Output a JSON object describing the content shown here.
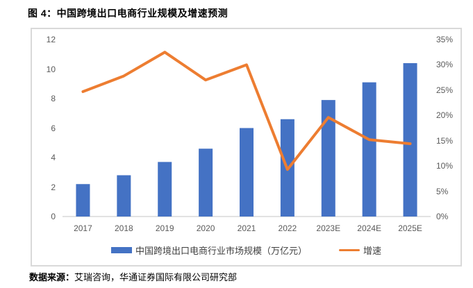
{
  "title": "图 4：中国跨境出口电商行业规模及增速预测",
  "source": {
    "label": "数据来源：",
    "text": "艾瑞咨询，华通证券国际有限公司研究部"
  },
  "legend": [
    {
      "label": "中国跨境出口电商行业市场规模（万亿元）",
      "swatch": "bar-swatch"
    },
    {
      "label": "增速",
      "swatch": "line-swatch"
    }
  ],
  "colors": {
    "bar": "#4472C4",
    "line": "#ED7D31",
    "axis_text": "#595959",
    "frame_border": "#D9D9D9",
    "baseline": "#D9D9D9"
  },
  "chart_data": {
    "type": "bar",
    "subtype": "bar+line-combo",
    "title": "中国跨境出口电商行业规模及增速预测",
    "categories": [
      "2017",
      "2018",
      "2019",
      "2020",
      "2021",
      "2022",
      "2023E",
      "2024E",
      "2025E"
    ],
    "series": [
      {
        "name": "中国跨境出口电商行业市场规模（万亿元）",
        "type": "bar",
        "axis": "left",
        "values": [
          2.2,
          2.8,
          3.7,
          4.6,
          6.0,
          6.6,
          7.9,
          9.1,
          10.4
        ]
      },
      {
        "name": "增速",
        "type": "line",
        "axis": "right",
        "unit": "%",
        "values": [
          24.7,
          27.8,
          32.5,
          27.0,
          30.0,
          9.3,
          19.6,
          15.2,
          14.4
        ]
      }
    ],
    "left_axis": {
      "ticks": [
        0,
        2,
        4,
        6,
        8,
        10,
        12
      ],
      "range": [
        0,
        12
      ],
      "label": ""
    },
    "right_axis": {
      "ticks": [
        "0%",
        "5%",
        "10%",
        "15%",
        "20%",
        "25%",
        "30%",
        "35%"
      ],
      "range_pct": [
        0,
        35
      ],
      "label": ""
    },
    "grid": false,
    "legend_position": "bottom",
    "xlabel": "",
    "ylabel": ""
  }
}
